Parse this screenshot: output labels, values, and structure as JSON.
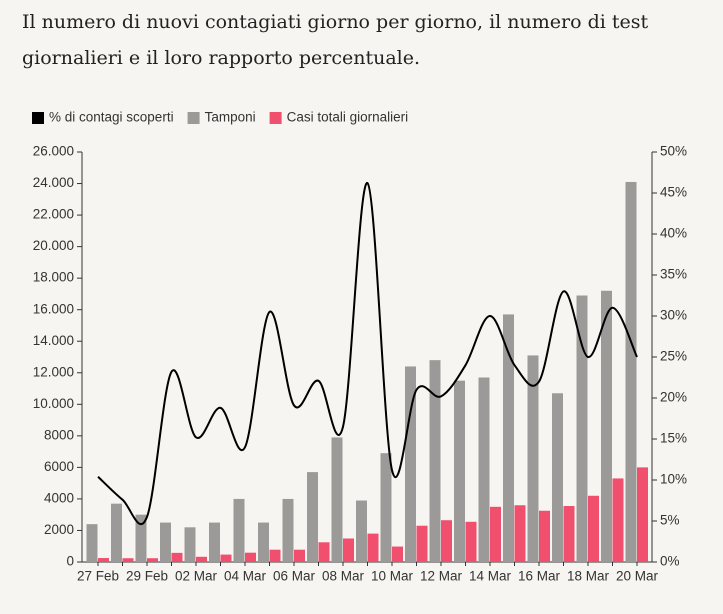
{
  "chart_data": {
    "type": "bar",
    "title": "Il numero di nuovi contagiati giorno per giorno, il numero di test giornalieri e il loro rapporto percentuale.",
    "categories": [
      "27 Feb",
      null,
      "29 Feb",
      null,
      "02 Mar",
      null,
      "04 Mar",
      null,
      "06 Mar",
      null,
      "08 Mar",
      null,
      "10 Mar",
      null,
      "12 Mar",
      null,
      "14 Mar",
      null,
      "16 Mar",
      null,
      "18 Mar",
      null,
      "20 Mar"
    ],
    "series": [
      {
        "name": "% di contagi scoperti",
        "color": "#000000",
        "type": "line",
        "axis": "y2",
        "values": [
          10.4,
          7.6,
          5.5,
          23.2,
          15.2,
          18.8,
          14,
          30.5,
          19.1,
          22.1,
          16.5,
          46.2,
          11.2,
          21,
          20.2,
          24,
          30,
          24,
          22,
          33,
          25,
          31,
          25
        ]
      },
      {
        "name": "Tamponi",
        "color": "#9b9a99",
        "values": [
          2400,
          3700,
          3000,
          2500,
          2200,
          2500,
          4000,
          2500,
          4000,
          5700,
          7900,
          3900,
          6900,
          12400,
          12800,
          11500,
          11700,
          15700,
          13100,
          10700,
          16900,
          17200,
          24100
        ]
      },
      {
        "name": "Casi totali giornalieri",
        "color": "#f0506e",
        "values": [
          250,
          240,
          240,
          580,
          330,
          470,
          590,
          780,
          780,
          1250,
          1490,
          1800,
          980,
          2300,
          2650,
          2550,
          3500,
          3600,
          3250,
          3550,
          4200,
          5300,
          6000
        ]
      }
    ],
    "ylim": [
      0,
      26000
    ],
    "yticks": [
      0,
      {
        "value": 2000,
        "label": "2000"
      },
      {
        "value": 4000,
        "label": "4000"
      },
      {
        "value": 6000,
        "label": "6000"
      },
      {
        "value": 8000,
        "label": "8000"
      },
      {
        "value": 10000,
        "label": "10.000"
      },
      {
        "value": 12000,
        "label": "12.000"
      },
      {
        "value": 14000,
        "label": "14.000"
      },
      {
        "value": 16000,
        "label": "16.000"
      },
      {
        "value": 18000,
        "label": "18.000"
      },
      {
        "value": 20000,
        "label": "20.000"
      },
      {
        "value": 22000,
        "label": "22.000"
      },
      {
        "value": 24000,
        "label": "24.000"
      },
      {
        "value": 26000,
        "label": "26.000"
      }
    ],
    "y2lim": [
      0,
      50
    ],
    "y2ticks": [
      {
        "value": 0,
        "label": "0%"
      },
      {
        "value": 5,
        "label": "5%"
      },
      {
        "value": 10,
        "label": "10%"
      },
      {
        "value": 15,
        "label": "15%"
      },
      {
        "value": 20,
        "label": "20%"
      },
      {
        "value": 25,
        "label": "25%"
      },
      {
        "value": 30,
        "label": "30%"
      },
      {
        "value": 35,
        "label": "35%"
      },
      {
        "value": 40,
        "label": "40%"
      },
      {
        "value": 45,
        "label": "45%"
      },
      {
        "value": 50,
        "label": "50%"
      }
    ],
    "legend": "top-left"
  }
}
